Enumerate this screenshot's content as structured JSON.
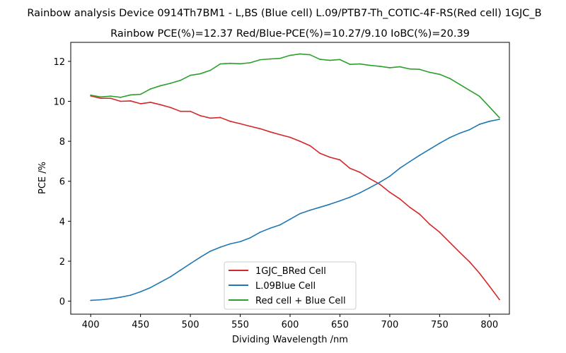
{
  "chart_data": {
    "type": "line",
    "title_line1": "Rainbow analysis Device 0914Th7BM1 - L,BS (Blue cell) L.09/PTB7-Th_COTIC-4F-RS(Red cell) 1GJC_B",
    "title_line2": "Rainbow PCE(%)=12.37  Red/Blue-PCE(%)=10.27/9.10   IoBC(%)=20.39",
    "xlabel": "Dividing Wavelength /nm",
    "ylabel": "PCE /%",
    "xlim": [
      380,
      820
    ],
    "ylim": [
      -0.65,
      12.95
    ],
    "xticks": [
      400,
      450,
      500,
      550,
      600,
      650,
      700,
      750,
      800
    ],
    "yticks": [
      0,
      2,
      4,
      6,
      8,
      10,
      12
    ],
    "grid": false,
    "legend_position": "lower-center",
    "x": [
      400,
      410,
      420,
      430,
      440,
      450,
      460,
      470,
      480,
      490,
      500,
      510,
      520,
      530,
      540,
      550,
      560,
      570,
      580,
      590,
      600,
      610,
      620,
      630,
      640,
      650,
      660,
      670,
      680,
      690,
      700,
      710,
      720,
      730,
      740,
      750,
      760,
      770,
      780,
      790,
      800,
      810
    ],
    "series": [
      {
        "name": "1GJC_BRed Cell",
        "color": "#d62728",
        "values": [
          10.27,
          10.15,
          10.15,
          10.0,
          10.02,
          9.88,
          9.95,
          9.83,
          9.69,
          9.5,
          9.5,
          9.28,
          9.16,
          9.19,
          9.0,
          8.88,
          8.75,
          8.63,
          8.47,
          8.33,
          8.2,
          8.0,
          7.78,
          7.4,
          7.2,
          7.07,
          6.65,
          6.45,
          6.13,
          5.85,
          5.45,
          5.12,
          4.7,
          4.35,
          3.85,
          3.45,
          2.95,
          2.45,
          1.97,
          1.4,
          0.75,
          0.08
        ]
      },
      {
        "name": "L.09Blue Cell",
        "color": "#1f77b4",
        "values": [
          0.04,
          0.07,
          0.12,
          0.2,
          0.3,
          0.47,
          0.68,
          0.95,
          1.22,
          1.55,
          1.88,
          2.2,
          2.5,
          2.7,
          2.87,
          2.98,
          3.17,
          3.45,
          3.65,
          3.82,
          4.1,
          4.38,
          4.55,
          4.7,
          4.85,
          5.02,
          5.2,
          5.42,
          5.68,
          5.95,
          6.25,
          6.65,
          6.98,
          7.3,
          7.6,
          7.9,
          8.18,
          8.4,
          8.58,
          8.85,
          9.0,
          9.1
        ]
      },
      {
        "name": "Red cell + Blue Cell",
        "color": "#2ca02c",
        "values": [
          10.31,
          10.22,
          10.26,
          10.2,
          10.32,
          10.35,
          10.62,
          10.78,
          10.9,
          11.05,
          11.3,
          11.38,
          11.55,
          11.87,
          11.9,
          11.88,
          11.93,
          12.08,
          12.12,
          12.15,
          12.3,
          12.37,
          12.33,
          12.1,
          12.05,
          12.09,
          11.85,
          11.87,
          11.8,
          11.75,
          11.68,
          11.73,
          11.62,
          11.6,
          11.45,
          11.35,
          11.15,
          10.85,
          10.55,
          10.25,
          9.72,
          9.18
        ]
      }
    ]
  }
}
